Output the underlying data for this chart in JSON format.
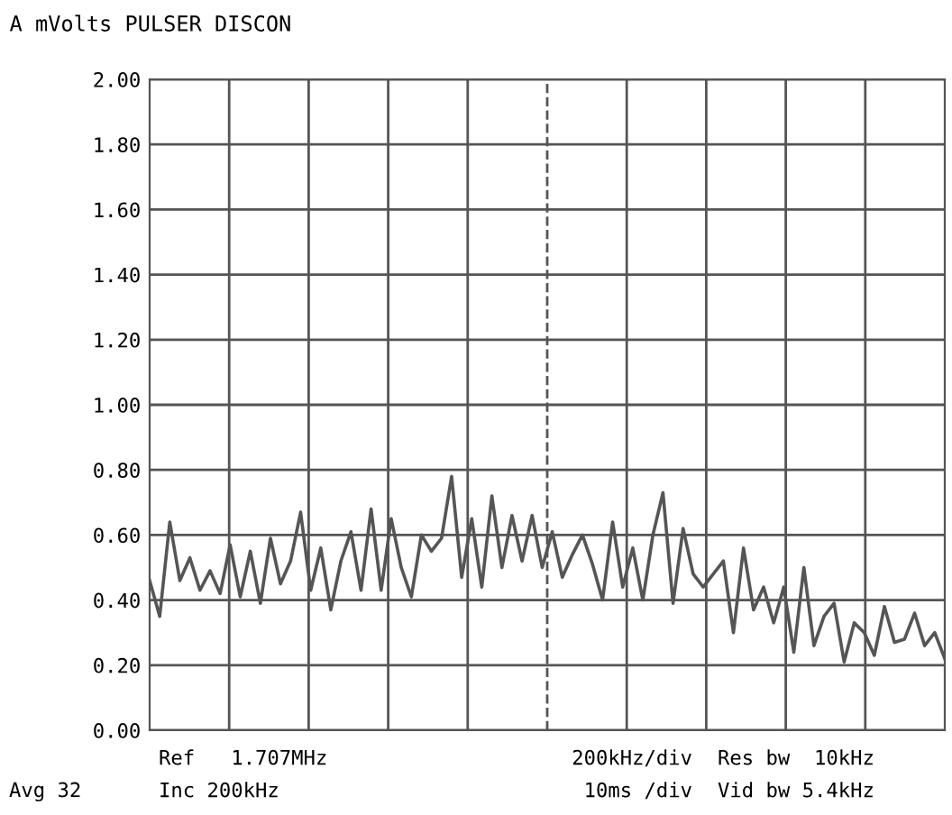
{
  "chart_data": {
    "type": "line",
    "title": "A mVolts PULSER DISCON",
    "categories": [
      null,
      null,
      null,
      null,
      null,
      null,
      null,
      null,
      null,
      null,
      null,
      null,
      null,
      null,
      null,
      null,
      null,
      null,
      null,
      null,
      null,
      null,
      null,
      null,
      null,
      null,
      null,
      null,
      null,
      null,
      null,
      null,
      null,
      null,
      null,
      null,
      null,
      null,
      null,
      null,
      null,
      null,
      null,
      null,
      null,
      null,
      null,
      null,
      null,
      null,
      null,
      null,
      null,
      null,
      null,
      null,
      null,
      null,
      null,
      null,
      null,
      null,
      null,
      null,
      null,
      null,
      null,
      null,
      null,
      null,
      null,
      null,
      null,
      null,
      null,
      null,
      null,
      null,
      null,
      null
    ],
    "series": [
      {
        "color": "#555555",
        "values": [
          0.46,
          0.35,
          0.64,
          0.46,
          0.53,
          0.43,
          0.49,
          0.42,
          0.57,
          0.41,
          0.55,
          0.39,
          0.59,
          0.45,
          0.52,
          0.67,
          0.43,
          0.56,
          0.37,
          0.52,
          0.61,
          0.43,
          0.68,
          0.43,
          0.65,
          0.5,
          0.41,
          0.6,
          0.55,
          0.59,
          0.78,
          0.47,
          0.65,
          0.44,
          0.72,
          0.5,
          0.66,
          0.52,
          0.66,
          0.5,
          0.61,
          0.47,
          0.54,
          0.6,
          0.51,
          0.4,
          0.64,
          0.44,
          0.56,
          0.4,
          0.6,
          0.73,
          0.39,
          0.62,
          0.48,
          0.44,
          0.48,
          0.52,
          0.3,
          0.56,
          0.37,
          0.44,
          0.33,
          0.44,
          0.24,
          0.5,
          0.26,
          0.35,
          0.39,
          0.21,
          0.33,
          0.3,
          0.23,
          0.38,
          0.27,
          0.28,
          0.36,
          0.26,
          0.3,
          0.22
        ]
      }
    ],
    "ylim": [
      0,
      2
    ],
    "yticks": [
      {
        "value": 0,
        "label": "0.00"
      },
      {
        "value": 0.2,
        "label": "0.20"
      },
      {
        "value": 0.4,
        "label": "0.40"
      },
      {
        "value": 0.6,
        "label": "0.60"
      },
      {
        "value": 0.8,
        "label": "0.80"
      },
      {
        "value": 1.0,
        "label": "1.00"
      },
      {
        "value": 1.2,
        "label": "1.20"
      },
      {
        "value": 1.4,
        "label": "1.40"
      },
      {
        "value": 1.6,
        "label": "1.60"
      },
      {
        "value": 1.8,
        "label": "1.80"
      },
      {
        "value": 2.0,
        "label": "2.00"
      }
    ],
    "grid": true,
    "tick_labels": "y",
    "annotations": [
      "Ref   1.707MHz",
      "200kHz/div",
      "Res bw  10kHz",
      "Avg 32",
      "Inc 200kHz",
      "10ms /div",
      "Vid bw 5.4kHz"
    ]
  }
}
